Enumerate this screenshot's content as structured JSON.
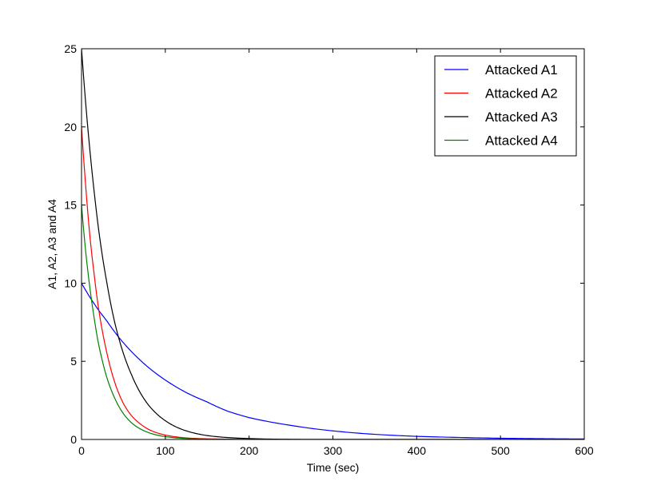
{
  "chart_data": {
    "type": "line",
    "title": "",
    "xlabel": "Time (sec)",
    "ylabel": "A1, A2, A3 and A4",
    "xlim": [
      0,
      600
    ],
    "ylim": [
      0,
      25
    ],
    "xticks": [
      "0",
      "100",
      "200",
      "300",
      "400",
      "500",
      "600"
    ],
    "yticks": [
      "0",
      "5",
      "10",
      "15",
      "20",
      "25"
    ],
    "grid": false,
    "legend_position": "top-right",
    "series": [
      {
        "name": "Attacked A1",
        "color": "#0000ff",
        "x": [
          0,
          10,
          20,
          30,
          45,
          60,
          80,
          100,
          125,
          150,
          175,
          200,
          250,
          300,
          350,
          400,
          450,
          500,
          550,
          600
        ],
        "y": [
          10,
          9.1,
          8.3,
          7.6,
          6.5,
          5.6,
          4.6,
          3.8,
          3.0,
          2.4,
          1.8,
          1.4,
          0.9,
          0.55,
          0.33,
          0.2,
          0.13,
          0.08,
          0.05,
          0.03
        ]
      },
      {
        "name": "Attacked A2",
        "color": "#ff0000",
        "x": [
          0,
          5,
          10,
          15,
          20,
          25,
          30,
          40,
          50,
          60,
          70,
          80,
          100,
          125,
          150,
          175,
          200,
          250,
          300,
          400,
          500,
          600
        ],
        "y": [
          20,
          16.2,
          13.0,
          10.6,
          8.5,
          6.9,
          5.6,
          3.6,
          2.3,
          1.5,
          1.0,
          0.65,
          0.28,
          0.1,
          0.04,
          0.02,
          0.01,
          0,
          0,
          0,
          0,
          0
        ]
      },
      {
        "name": "Attacked A3",
        "color": "#000000",
        "x": [
          0,
          5,
          10,
          15,
          20,
          25,
          30,
          40,
          50,
          60,
          70,
          80,
          100,
          125,
          150,
          175,
          200,
          250,
          300,
          400,
          500,
          600
        ],
        "y": [
          25,
          21.5,
          18.5,
          15.9,
          13.6,
          11.7,
          10.1,
          7.4,
          5.5,
          4.1,
          3.0,
          2.2,
          1.2,
          0.55,
          0.25,
          0.12,
          0.06,
          0.01,
          0,
          0,
          0,
          0
        ]
      },
      {
        "name": "Attacked A4",
        "color": "#008000",
        "x": [
          0,
          5,
          10,
          15,
          20,
          25,
          30,
          40,
          50,
          60,
          70,
          80,
          100,
          125,
          150,
          175,
          200,
          250,
          300,
          400,
          500,
          600
        ],
        "y": [
          15,
          12.0,
          9.7,
          7.8,
          6.2,
          5.0,
          4.0,
          2.6,
          1.65,
          1.05,
          0.68,
          0.44,
          0.18,
          0.06,
          0.02,
          0.01,
          0,
          0,
          0,
          0,
          0,
          0
        ]
      }
    ]
  }
}
